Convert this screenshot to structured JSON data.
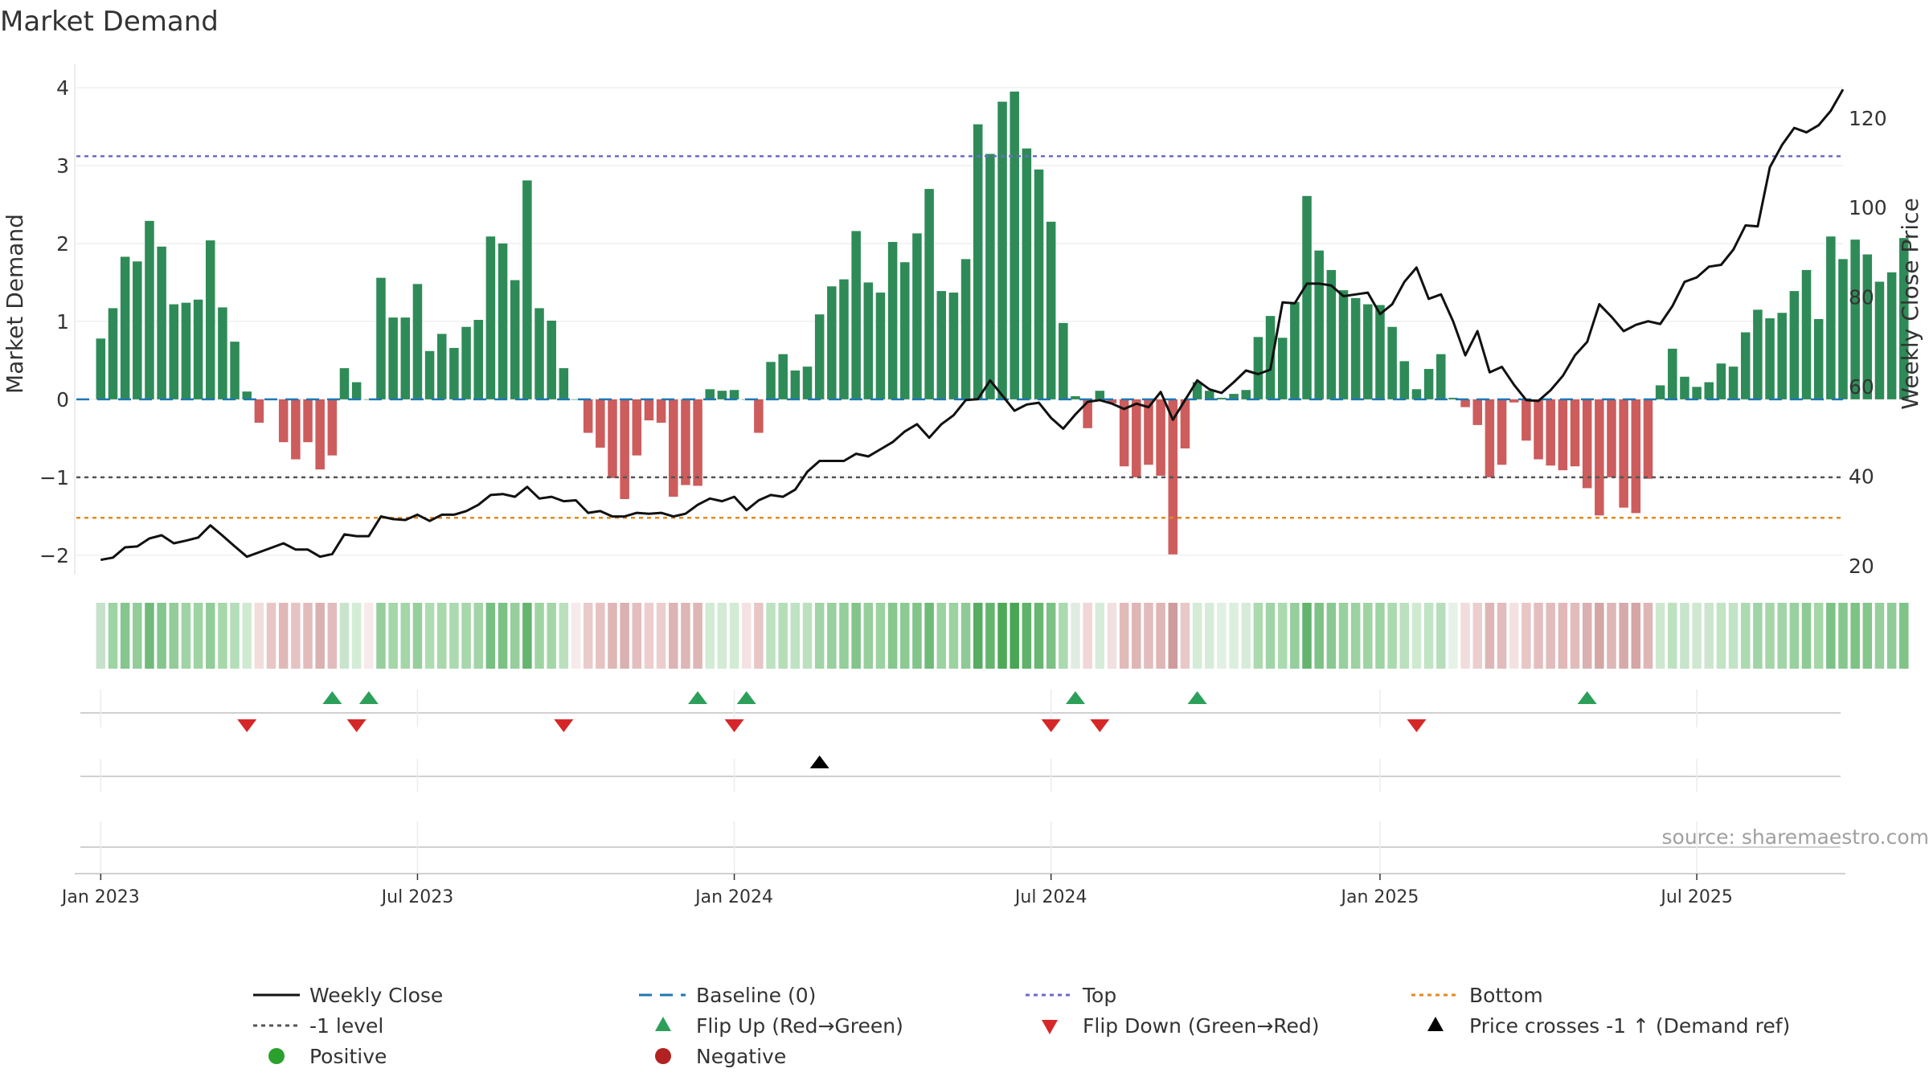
{
  "chart_data": {
    "type": "bar",
    "title": "Market Demand",
    "ylabel": "Market Demand",
    "y2label": "Weekly Close Price",
    "ylim": [
      -2.25,
      4.3
    ],
    "y2lim": [
      18,
      132
    ],
    "yticks": [
      -2,
      -1,
      0,
      1,
      2,
      3,
      4
    ],
    "ytick_labels": [
      "−2",
      "−1",
      "0",
      "1",
      "2",
      "3",
      "4"
    ],
    "y2ticks": [
      20,
      40,
      60,
      80,
      100,
      120
    ],
    "y2tick_labels": [
      "20",
      "40",
      "60",
      "80",
      "100",
      "120"
    ],
    "xdomain": [
      -2,
      143
    ],
    "xticks": [
      {
        "week": 0,
        "label": "Jan 2023"
      },
      {
        "week": 26,
        "label": "Jul 2023"
      },
      {
        "week": 52,
        "label": "Jan 2024"
      },
      {
        "week": 78,
        "label": "Jul 2024"
      },
      {
        "week": 105,
        "label": "Jan 2025"
      },
      {
        "week": 131,
        "label": "Jul 2025"
      }
    ],
    "levels": {
      "top": 3.12,
      "minus_one": -1,
      "bottom": -1.52,
      "baseline": 0
    },
    "demand": [
      0.78,
      1.17,
      1.83,
      1.77,
      2.29,
      1.96,
      1.22,
      1.24,
      1.28,
      2.04,
      1.18,
      0.74,
      0.1,
      -0.3,
      0,
      -0.55,
      -0.77,
      -0.55,
      -0.9,
      -0.72,
      0.4,
      0.22,
      0,
      1.56,
      1.05,
      1.05,
      1.48,
      0.62,
      0.84,
      0.66,
      0.93,
      1.02,
      2.09,
      2.0,
      1.53,
      2.81,
      1.17,
      1.01,
      0.4,
      0,
      -0.43,
      -0.62,
      -1.01,
      -1.28,
      -0.72,
      -0.27,
      -0.3,
      -1.25,
      -1.1,
      -1.11,
      0.13,
      0.11,
      0.12,
      0,
      -0.43,
      0.48,
      0.58,
      0.37,
      0.42,
      1.09,
      1.45,
      1.54,
      2.16,
      1.5,
      1.37,
      2.02,
      1.76,
      2.13,
      2.7,
      1.39,
      1.37,
      1.8,
      3.53,
      3.15,
      3.82,
      3.95,
      3.22,
      2.95,
      2.28,
      0.98,
      0.04,
      -0.37,
      0.11,
      -0.05,
      -0.86,
      -1.0,
      -0.84,
      -0.98,
      -1.99,
      -0.63,
      0.22,
      0.11,
      0.02,
      0.07,
      0.12,
      0.8,
      1.07,
      0.79,
      1.25,
      2.61,
      1.91,
      1.66,
      1.4,
      1.3,
      1.22,
      1.21,
      0.93,
      0.49,
      0.13,
      0.39,
      0.58,
      0.02,
      -0.1,
      -0.33,
      -1.0,
      -0.84,
      -0.04,
      -0.53,
      -0.77,
      -0.85,
      -0.91,
      -0.86,
      -1.14,
      -1.49,
      -1.0,
      -1.39,
      -1.46,
      -1.02,
      0.18,
      0.65,
      0.29,
      0.16,
      0.22,
      0.46,
      0.42,
      0.86,
      1.15,
      1.04,
      1.11,
      1.39,
      1.66,
      1.03,
      2.09,
      1.8,
      2.05,
      1.86,
      1.51,
      1.63,
      2.07
    ],
    "weekly_close": [
      21.3,
      21.8,
      24.1,
      24.3,
      26.1,
      26.8,
      25.0,
      25.6,
      26.3,
      29.0,
      26.7,
      24.3,
      22.0,
      23.0,
      24.0,
      25.0,
      23.6,
      23.6,
      22.0,
      22.6,
      27.0,
      26.6,
      26.6,
      31.0,
      30.4,
      30.2,
      31.4,
      30.0,
      31.4,
      31.4,
      32.2,
      33.6,
      35.8,
      36.0,
      35.4,
      37.6,
      35.0,
      35.4,
      34.4,
      34.6,
      31.8,
      32.2,
      31.0,
      31.0,
      31.8,
      31.6,
      31.8,
      31.0,
      31.6,
      33.6,
      35.0,
      34.4,
      35.4,
      32.4,
      34.6,
      35.8,
      35.4,
      37.0,
      41.0,
      43.4,
      43.4,
      43.4,
      45.0,
      44.4,
      46.0,
      47.6,
      50.0,
      51.6,
      48.6,
      51.6,
      53.6,
      57.0,
      57.2,
      61.4,
      58.0,
      54.6,
      56.0,
      56.4,
      53.0,
      50.6,
      53.8,
      56.6,
      57.0,
      56.2,
      55.0,
      56.2,
      55.4,
      58.8,
      52.6,
      57.0,
      61.4,
      59.4,
      58.6,
      61.0,
      63.6,
      62.8,
      63.8,
      78.8,
      78.6,
      83.0,
      83.0,
      82.6,
      80.2,
      80.6,
      81.0,
      76.2,
      78.4,
      83.4,
      86.6,
      79.6,
      80.6,
      74.6,
      67.0,
      72.4,
      63.2,
      64.4,
      60.4,
      57.0,
      56.8,
      59.2,
      62.4,
      67.0,
      70.0,
      78.4,
      75.6,
      72.4,
      73.8,
      74.6,
      74.0,
      78.0,
      83.4,
      84.4,
      86.8,
      87.2,
      90.6,
      96.0,
      95.8,
      109.0,
      114.0,
      117.8,
      116.8,
      118.4,
      121.6,
      126.4
    ],
    "strip": {
      "positive": [
        [
          198,
          225,
          202
        ],
        [
          158,
          212,
          163
        ],
        [
          133,
          198,
          142
        ],
        [
          146,
          204,
          153
        ],
        [
          112,
          187,
          122
        ],
        [
          133,
          198,
          142
        ],
        [
          146,
          204,
          153
        ],
        [
          158,
          212,
          163
        ],
        [
          158,
          212,
          163
        ],
        [
          146,
          204,
          153
        ],
        [
          166,
          216,
          170
        ],
        [
          180,
          222,
          184
        ],
        [
          208,
          234,
          210
        ],
        [
          242,
          220,
          220
        ],
        [
          232,
          198,
          198
        ],
        [
          224,
          184,
          184
        ],
        [
          230,
          194,
          194
        ],
        [
          226,
          188,
          188
        ],
        [
          218,
          176,
          176
        ],
        [
          226,
          188,
          188
        ],
        [
          200,
          228,
          204
        ],
        [
          212,
          236,
          214
        ],
        [
          246,
          234,
          234
        ],
        [
          150,
          206,
          156
        ],
        [
          164,
          214,
          168
        ],
        [
          164,
          214,
          168
        ],
        [
          150,
          206,
          156
        ],
        [
          174,
          220,
          178
        ],
        [
          168,
          216,
          172
        ],
        [
          172,
          218,
          176
        ],
        [
          166,
          216,
          170
        ],
        [
          162,
          212,
          166
        ],
        [
          120,
          192,
          130
        ],
        [
          122,
          193,
          132
        ],
        [
          150,
          206,
          156
        ],
        [
          100,
          180,
          110
        ],
        [
          158,
          212,
          163
        ],
        [
          164,
          214,
          168
        ],
        [
          186,
          224,
          190
        ],
        [
          246,
          234,
          234
        ],
        [
          234,
          202,
          202
        ],
        [
          230,
          194,
          194
        ],
        [
          222,
          182,
          182
        ],
        [
          218,
          176,
          176
        ],
        [
          228,
          190,
          190
        ],
        [
          236,
          206,
          206
        ],
        [
          236,
          206,
          206
        ],
        [
          220,
          180,
          180
        ],
        [
          222,
          182,
          182
        ],
        [
          222,
          182,
          182
        ],
        [
          210,
          235,
          212
        ],
        [
          210,
          235,
          212
        ],
        [
          210,
          235,
          212
        ],
        [
          244,
          226,
          226
        ],
        [
          232,
          198,
          198
        ],
        [
          188,
          226,
          192
        ],
        [
          180,
          222,
          184
        ],
        [
          190,
          226,
          194
        ],
        [
          186,
          224,
          190
        ],
        [
          160,
          212,
          166
        ],
        [
          152,
          208,
          158
        ],
        [
          148,
          206,
          154
        ],
        [
          130,
          196,
          138
        ],
        [
          150,
          206,
          156
        ],
        [
          156,
          210,
          160
        ],
        [
          134,
          199,
          142
        ],
        [
          140,
          202,
          148
        ],
        [
          130,
          196,
          138
        ],
        [
          112,
          186,
          122
        ],
        [
          156,
          210,
          160
        ],
        [
          156,
          210,
          160
        ],
        [
          142,
          202,
          150
        ],
        [
          86,
          172,
          96
        ],
        [
          100,
          180,
          110
        ],
        [
          78,
          168,
          88
        ],
        [
          74,
          166,
          84
        ],
        [
          96,
          178,
          106
        ],
        [
          104,
          182,
          114
        ],
        [
          124,
          194,
          134
        ],
        [
          170,
          218,
          174
        ],
        [
          224,
          236,
          226
        ],
        [
          240,
          214,
          214
        ],
        [
          214,
          236,
          216
        ],
        [
          240,
          224,
          224
        ],
        [
          226,
          186,
          186
        ],
        [
          222,
          182,
          182
        ],
        [
          226,
          188,
          188
        ],
        [
          222,
          182,
          182
        ],
        [
          206,
          156,
          156
        ],
        [
          234,
          200,
          200
        ],
        [
          212,
          236,
          214
        ],
        [
          214,
          236,
          216
        ],
        [
          224,
          240,
          226
        ],
        [
          220,
          238,
          222
        ],
        [
          214,
          236,
          216
        ],
        [
          170,
          218,
          174
        ],
        [
          160,
          212,
          166
        ],
        [
          170,
          218,
          174
        ],
        [
          150,
          206,
          156
        ],
        [
          100,
          180,
          110
        ],
        [
          126,
          194,
          134
        ],
        [
          138,
          200,
          146
        ],
        [
          152,
          208,
          158
        ],
        [
          156,
          210,
          160
        ],
        [
          158,
          212,
          163
        ],
        [
          158,
          212,
          163
        ],
        [
          170,
          218,
          174
        ],
        [
          186,
          224,
          190
        ],
        [
          208,
          234,
          210
        ],
        [
          192,
          228,
          196
        ],
        [
          182,
          222,
          186
        ],
        [
          230,
          242,
          232
        ],
        [
          242,
          220,
          220
        ],
        [
          236,
          206,
          206
        ],
        [
          222,
          182,
          182
        ],
        [
          226,
          188,
          188
        ],
        [
          244,
          226,
          226
        ],
        [
          232,
          198,
          198
        ],
        [
          228,
          190,
          190
        ],
        [
          226,
          188,
          188
        ],
        [
          224,
          184,
          184
        ],
        [
          226,
          188,
          188
        ],
        [
          218,
          176,
          176
        ],
        [
          212,
          166,
          166
        ],
        [
          222,
          182,
          182
        ],
        [
          214,
          170,
          170
        ],
        [
          212,
          166,
          166
        ],
        [
          222,
          182,
          182
        ],
        [
          206,
          232,
          208
        ],
        [
          188,
          226,
          192
        ],
        [
          200,
          228,
          204
        ],
        [
          206,
          232,
          208
        ],
        [
          204,
          230,
          206
        ],
        [
          192,
          228,
          196
        ],
        [
          194,
          228,
          198
        ],
        [
          172,
          218,
          176
        ],
        [
          160,
          212,
          166
        ],
        [
          164,
          214,
          168
        ],
        [
          162,
          212,
          166
        ],
        [
          152,
          208,
          158
        ],
        [
          142,
          202,
          150
        ],
        [
          164,
          214,
          168
        ],
        [
          124,
          194,
          134
        ],
        [
          134,
          199,
          142
        ],
        [
          126,
          194,
          134
        ],
        [
          132,
          198,
          140
        ],
        [
          150,
          206,
          156
        ],
        [
          144,
          204,
          152
        ],
        [
          128,
          195,
          136
        ]
      ]
    },
    "flip_up_weeks": [
      19,
      22,
      49,
      53,
      80,
      90,
      122
    ],
    "flip_down_weeks": [
      12,
      21,
      38,
      52,
      78,
      82,
      108
    ],
    "price_cross_weeks": [
      59
    ],
    "source": "source: sharemaestro.com",
    "legend": {
      "weekly_close": "Weekly Close",
      "baseline": "Baseline (0)",
      "top": "Top",
      "bottom": "Bottom",
      "minus_one": "-1 level",
      "flip_up": "Flip Up (Red→Green)",
      "flip_down": "Flip Down (Green→Red)",
      "price_cross": "Price crosses -1 ↑ (Demand ref)",
      "positive": "Positive",
      "negative": "Negative"
    },
    "colors": {
      "positive_bar": "#2e8b57",
      "negative_bar": "#cd5c5c",
      "price_line": "#111111",
      "baseline": "#1f77b4",
      "top": "#6b6bc8",
      "minus_one": "#555555",
      "bottom": "#e08a1e",
      "flip_up": "#2ca05a",
      "flip_down": "#d62728",
      "price_cross": "#000000",
      "positive_dot": "#2ca02c",
      "negative_dot": "#b22222"
    }
  }
}
